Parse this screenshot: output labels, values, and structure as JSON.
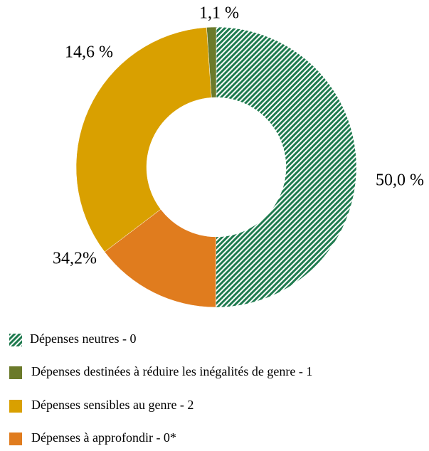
{
  "chart_data": {
    "type": "donut",
    "categories": [
      "Dépenses neutres - 0",
      "Dépenses destinées à réduire les inégalités de genre - 1",
      "Dépenses sensibles au genre - 2",
      "Dépenses à approfondir - 0*"
    ],
    "values": [
      50.0,
      1.1,
      34.2,
      14.6
    ],
    "value_labels": [
      "50,0 %",
      "1,1 %",
      "34,2%",
      "14,6 %"
    ],
    "colors": [
      "#1e7a4e",
      "#6b7a2a",
      "#d9a000",
      "#e07c1e"
    ],
    "hatched": [
      true,
      false,
      false,
      false
    ],
    "legend": "bottom"
  }
}
